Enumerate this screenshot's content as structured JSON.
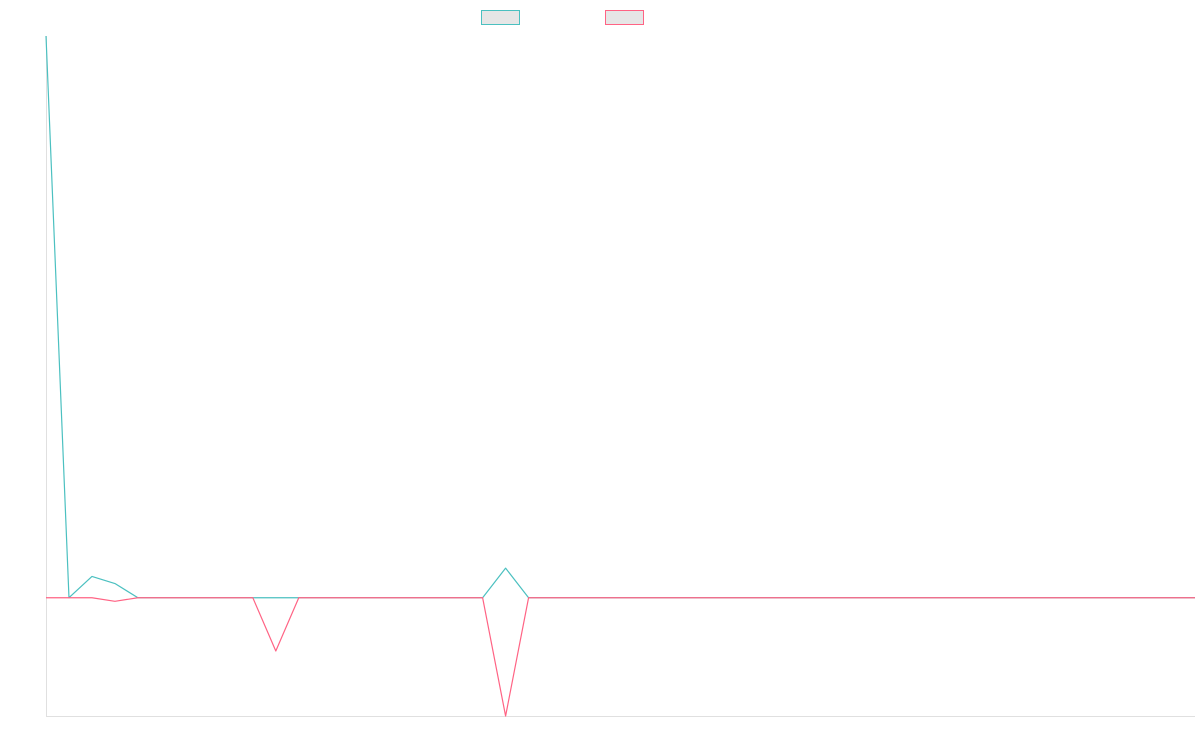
{
  "chart_data": {
    "type": "line",
    "title": "",
    "xlabel": "",
    "ylabel": "",
    "grid": false,
    "legend": "top-center",
    "x": [
      0,
      1,
      2,
      3,
      4,
      5,
      6,
      7,
      8,
      9,
      10,
      11,
      12,
      13,
      14,
      15,
      16,
      17,
      18,
      19,
      20,
      21,
      22,
      23,
      24,
      25,
      26,
      27,
      28,
      29,
      30,
      31,
      32,
      33,
      34,
      35,
      36,
      37,
      38,
      39,
      40,
      41,
      42,
      43,
      44,
      45,
      46,
      47,
      48,
      49,
      50
    ],
    "ylim": [
      -100,
      475
    ],
    "series": [
      {
        "color": "#4bc0c0",
        "fill": "#e6e6e6",
        "values": [
          475,
          0,
          18,
          12,
          0,
          0,
          0,
          0,
          0,
          0,
          0,
          0,
          0,
          0,
          0,
          0,
          0,
          0,
          0,
          0,
          25,
          0,
          0,
          0,
          0,
          0,
          0,
          0,
          0,
          0,
          0,
          0,
          0,
          0,
          0,
          0,
          0,
          0,
          0,
          0,
          0,
          0,
          0,
          0,
          0,
          0,
          0,
          0,
          0,
          0,
          0
        ]
      },
      {
        "color": "#ff6384",
        "fill": "#e6e6e6",
        "values": [
          0,
          0,
          0,
          -3,
          0,
          0,
          0,
          0,
          0,
          0,
          -45,
          0,
          0,
          0,
          0,
          0,
          0,
          0,
          0,
          0,
          -100,
          0,
          0,
          0,
          0,
          0,
          0,
          0,
          0,
          0,
          0,
          0,
          0,
          0,
          0,
          0,
          0,
          0,
          0,
          0,
          0,
          0,
          0,
          0,
          0,
          0,
          0,
          0,
          0,
          0,
          0
        ]
      }
    ]
  }
}
